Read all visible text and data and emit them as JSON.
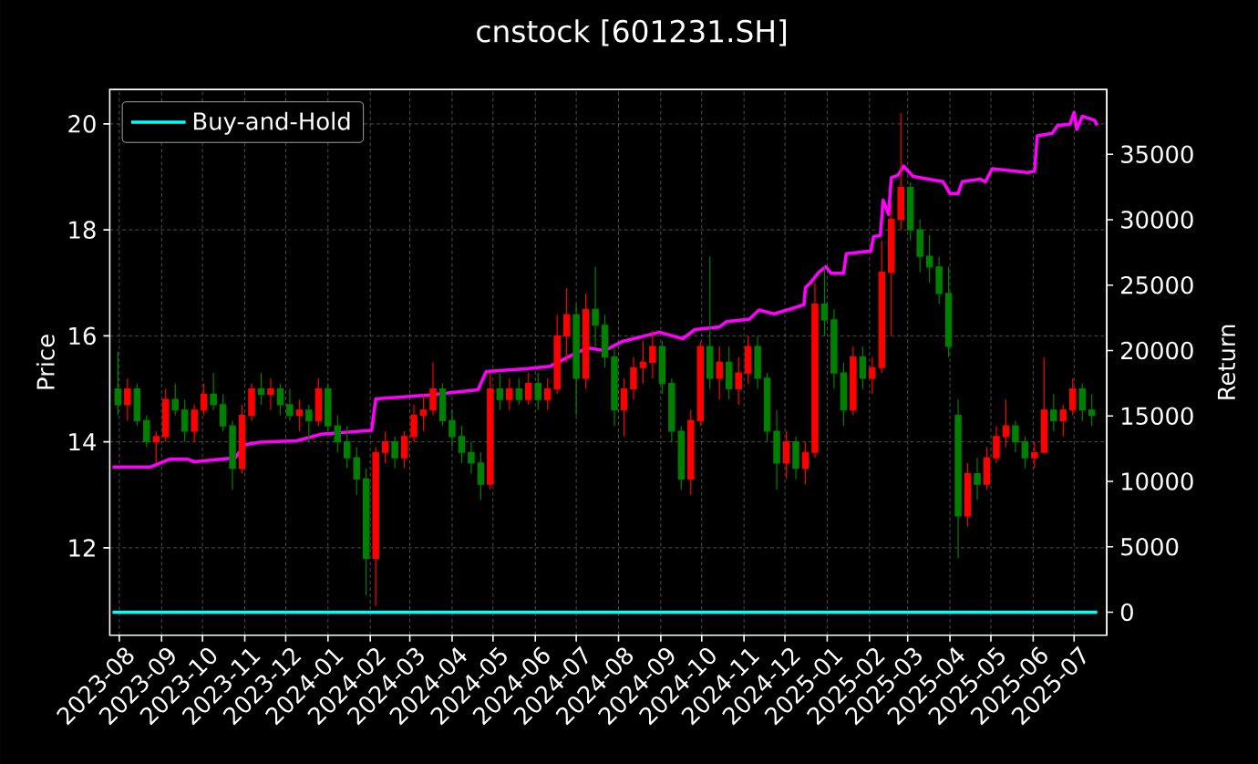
{
  "chart_data": {
    "type": "candlestick",
    "title": "cnstock [601231.SH]",
    "ylabel": "Price",
    "y2label": "Return",
    "x": [
      "2023-07-31",
      "2023-08-07",
      "2023-08-14",
      "2023-08-21",
      "2023-08-28",
      "2023-09-04",
      "2023-09-11",
      "2023-09-18",
      "2023-09-25",
      "2023-10-02",
      "2023-10-09",
      "2023-10-16",
      "2023-10-23",
      "2023-10-30",
      "2023-11-06",
      "2023-11-13",
      "2023-11-20",
      "2023-11-27",
      "2023-12-04",
      "2023-12-11",
      "2023-12-18",
      "2023-12-25",
      "2024-01-01",
      "2024-01-08",
      "2024-01-15",
      "2024-01-22",
      "2024-01-29",
      "2024-02-05",
      "2024-02-12",
      "2024-02-19",
      "2024-02-26",
      "2024-03-04",
      "2024-03-11",
      "2024-03-18",
      "2024-03-25",
      "2024-04-01",
      "2024-04-08",
      "2024-04-15",
      "2024-04-22",
      "2024-04-29",
      "2024-05-06",
      "2024-05-13",
      "2024-05-20",
      "2024-05-27",
      "2024-06-03",
      "2024-06-10",
      "2024-06-17",
      "2024-06-24",
      "2024-07-01",
      "2024-07-08",
      "2024-07-15",
      "2024-07-22",
      "2024-07-29",
      "2024-08-05",
      "2024-08-12",
      "2024-08-19",
      "2024-08-26",
      "2024-09-02",
      "2024-09-09",
      "2024-09-16",
      "2024-09-23",
      "2024-09-30",
      "2024-10-07",
      "2024-10-14",
      "2024-10-21",
      "2024-10-28",
      "2024-11-04",
      "2024-11-11",
      "2024-11-18",
      "2024-11-25",
      "2024-12-02",
      "2024-12-09",
      "2024-12-16",
      "2024-12-23",
      "2024-12-30",
      "2025-01-06",
      "2025-01-13",
      "2025-01-20",
      "2025-01-27",
      "2025-02-03",
      "2025-02-10",
      "2025-02-17",
      "2025-02-24",
      "2025-03-03",
      "2025-03-10",
      "2025-03-17",
      "2025-03-24",
      "2025-03-31",
      "2025-04-07",
      "2025-04-14",
      "2025-04-21",
      "2025-04-28",
      "2025-05-05",
      "2025-05-12",
      "2025-05-19",
      "2025-05-26",
      "2025-06-02",
      "2025-06-09",
      "2025-06-16",
      "2025-06-23",
      "2025-06-30",
      "2025-07-07",
      "2025-07-14"
    ],
    "ohlc": [
      [
        15.0,
        15.7,
        14.5,
        14.7
      ],
      [
        14.7,
        15.2,
        14.4,
        15.0
      ],
      [
        15.0,
        15.1,
        14.3,
        14.4
      ],
      [
        14.4,
        14.5,
        13.9,
        14.0
      ],
      [
        14.0,
        14.2,
        13.6,
        14.1
      ],
      [
        14.1,
        15.0,
        14.0,
        14.8
      ],
      [
        14.8,
        15.1,
        14.5,
        14.6
      ],
      [
        14.6,
        14.8,
        14.0,
        14.2
      ],
      [
        14.2,
        14.7,
        14.0,
        14.6
      ],
      [
        14.6,
        15.1,
        14.5,
        14.9
      ],
      [
        14.9,
        15.3,
        14.6,
        14.7
      ],
      [
        14.7,
        14.9,
        14.2,
        14.3
      ],
      [
        14.3,
        14.4,
        13.1,
        13.5
      ],
      [
        13.5,
        14.7,
        13.4,
        14.5
      ],
      [
        14.5,
        15.1,
        14.4,
        15.0
      ],
      [
        15.0,
        15.3,
        14.7,
        14.9
      ],
      [
        14.9,
        15.2,
        14.6,
        15.0
      ],
      [
        15.0,
        15.1,
        14.5,
        14.7
      ],
      [
        14.7,
        15.0,
        14.4,
        14.5
      ],
      [
        14.5,
        14.8,
        14.2,
        14.6
      ],
      [
        14.6,
        14.7,
        14.0,
        14.4
      ],
      [
        14.4,
        15.2,
        14.3,
        15.0
      ],
      [
        15.0,
        15.1,
        14.2,
        14.3
      ],
      [
        14.3,
        14.5,
        13.8,
        14.0
      ],
      [
        14.0,
        14.3,
        13.5,
        13.7
      ],
      [
        13.7,
        13.9,
        13.0,
        13.3
      ],
      [
        13.3,
        13.5,
        11.1,
        11.8
      ],
      [
        11.8,
        13.9,
        10.9,
        13.8
      ],
      [
        13.8,
        14.2,
        13.6,
        14.0
      ],
      [
        14.0,
        14.1,
        13.5,
        13.7
      ],
      [
        13.7,
        14.2,
        13.5,
        14.1
      ],
      [
        14.1,
        14.7,
        14.0,
        14.5
      ],
      [
        14.5,
        14.9,
        14.2,
        14.6
      ],
      [
        14.6,
        15.5,
        14.5,
        15.0
      ],
      [
        15.0,
        15.1,
        14.3,
        14.4
      ],
      [
        14.4,
        14.6,
        13.9,
        14.1
      ],
      [
        14.1,
        14.3,
        13.6,
        13.8
      ],
      [
        13.8,
        14.0,
        13.4,
        13.6
      ],
      [
        13.6,
        13.8,
        12.9,
        13.2
      ],
      [
        13.2,
        15.3,
        13.1,
        15.0
      ],
      [
        15.0,
        15.3,
        14.6,
        14.8
      ],
      [
        14.8,
        15.2,
        14.6,
        15.0
      ],
      [
        15.0,
        15.2,
        14.7,
        14.8
      ],
      [
        14.8,
        15.3,
        14.7,
        15.1
      ],
      [
        15.1,
        15.3,
        14.6,
        14.8
      ],
      [
        14.8,
        15.2,
        14.6,
        15.0
      ],
      [
        15.0,
        16.4,
        14.9,
        16.0
      ],
      [
        16.0,
        16.9,
        15.5,
        16.4
      ],
      [
        16.4,
        16.6,
        14.5,
        15.2
      ],
      [
        15.2,
        16.8,
        15.0,
        16.5
      ],
      [
        16.5,
        17.3,
        15.8,
        16.2
      ],
      [
        16.2,
        16.4,
        15.4,
        15.6
      ],
      [
        15.6,
        15.8,
        14.3,
        14.6
      ],
      [
        14.6,
        15.2,
        14.1,
        15.0
      ],
      [
        15.0,
        15.6,
        14.8,
        15.4
      ],
      [
        15.4,
        15.9,
        15.1,
        15.5
      ],
      [
        15.5,
        16.1,
        15.2,
        15.8
      ],
      [
        15.8,
        15.9,
        14.9,
        15.1
      ],
      [
        15.1,
        15.2,
        14.0,
        14.2
      ],
      [
        14.2,
        14.3,
        13.1,
        13.3
      ],
      [
        13.3,
        14.6,
        13.0,
        14.4
      ],
      [
        14.4,
        15.9,
        14.3,
        15.8
      ],
      [
        15.8,
        17.5,
        15.0,
        15.2
      ],
      [
        15.2,
        15.8,
        14.8,
        15.5
      ],
      [
        15.5,
        15.8,
        14.8,
        15.0
      ],
      [
        15.0,
        15.6,
        14.7,
        15.3
      ],
      [
        15.3,
        16.0,
        15.1,
        15.8
      ],
      [
        15.8,
        16.0,
        15.0,
        15.2
      ],
      [
        15.2,
        15.3,
        14.0,
        14.2
      ],
      [
        14.2,
        14.6,
        13.1,
        13.6
      ],
      [
        13.6,
        14.2,
        13.3,
        14.0
      ],
      [
        14.0,
        14.1,
        13.3,
        13.5
      ],
      [
        13.5,
        14.0,
        13.2,
        13.8
      ],
      [
        13.8,
        17.0,
        13.7,
        16.6
      ],
      [
        16.6,
        17.3,
        16.0,
        16.3
      ],
      [
        16.3,
        16.5,
        15.0,
        15.3
      ],
      [
        15.3,
        15.5,
        14.3,
        14.6
      ],
      [
        14.6,
        15.8,
        14.5,
        15.6
      ],
      [
        15.6,
        15.8,
        15.0,
        15.2
      ],
      [
        15.2,
        15.6,
        14.9,
        15.4
      ],
      [
        15.4,
        17.8,
        15.3,
        17.2
      ],
      [
        17.2,
        18.5,
        16.0,
        18.2
      ],
      [
        18.2,
        20.2,
        18.0,
        18.8
      ],
      [
        18.8,
        18.9,
        17.8,
        18.0
      ],
      [
        18.0,
        18.2,
        17.2,
        17.5
      ],
      [
        17.5,
        17.9,
        17.0,
        17.3
      ],
      [
        17.3,
        17.5,
        16.6,
        16.8
      ],
      [
        16.8,
        17.3,
        15.6,
        15.8
      ],
      [
        14.5,
        14.8,
        11.8,
        12.6
      ],
      [
        12.6,
        13.6,
        12.4,
        13.4
      ],
      [
        13.4,
        13.7,
        12.9,
        13.2
      ],
      [
        13.2,
        13.9,
        13.1,
        13.7
      ],
      [
        13.7,
        14.3,
        13.6,
        14.1
      ],
      [
        14.1,
        14.8,
        13.9,
        14.3
      ],
      [
        14.3,
        14.4,
        13.8,
        14.0
      ],
      [
        14.0,
        14.1,
        13.5,
        13.7
      ],
      [
        13.7,
        14.0,
        13.5,
        13.8
      ],
      [
        13.8,
        15.6,
        13.8,
        14.6
      ],
      [
        14.6,
        14.9,
        14.2,
        14.4
      ],
      [
        14.4,
        14.7,
        14.1,
        14.6
      ],
      [
        14.6,
        15.2,
        14.5,
        15.0
      ],
      [
        15.0,
        15.1,
        14.4,
        14.6
      ],
      [
        14.6,
        14.9,
        14.3,
        14.5
      ]
    ],
    "colors": [
      "#008000",
      "#ff0000",
      "#008000",
      "#008000",
      "#ff0000",
      "#ff0000",
      "#008000",
      "#008000",
      "#ff0000",
      "#ff0000",
      "#008000",
      "#008000",
      "#008000",
      "#ff0000",
      "#ff0000",
      "#008000",
      "#ff0000",
      "#008000",
      "#008000",
      "#ff0000",
      "#008000",
      "#ff0000",
      "#008000",
      "#008000",
      "#008000",
      "#008000",
      "#008000",
      "#ff0000",
      "#ff0000",
      "#008000",
      "#ff0000",
      "#ff0000",
      "#ff0000",
      "#ff0000",
      "#008000",
      "#008000",
      "#008000",
      "#008000",
      "#008000",
      "#ff0000",
      "#008000",
      "#ff0000",
      "#008000",
      "#ff0000",
      "#008000",
      "#ff0000",
      "#ff0000",
      "#ff0000",
      "#008000",
      "#ff0000",
      "#008000",
      "#008000",
      "#008000",
      "#ff0000",
      "#ff0000",
      "#ff0000",
      "#ff0000",
      "#008000",
      "#008000",
      "#008000",
      "#ff0000",
      "#ff0000",
      "#008000",
      "#ff0000",
      "#008000",
      "#ff0000",
      "#ff0000",
      "#008000",
      "#008000",
      "#008000",
      "#ff0000",
      "#008000",
      "#ff0000",
      "#ff0000",
      "#008000",
      "#008000",
      "#008000",
      "#ff0000",
      "#008000",
      "#ff0000",
      "#ff0000",
      "#ff0000",
      "#ff0000",
      "#008000",
      "#008000",
      "#008000",
      "#008000",
      "#008000",
      "#008000",
      "#ff0000",
      "#008000",
      "#ff0000",
      "#ff0000",
      "#ff0000",
      "#008000",
      "#008000",
      "#ff0000",
      "#ff0000",
      "#008000",
      "#ff0000",
      "#ff0000",
      "#008000",
      "#008000"
    ],
    "series": [
      {
        "type": "line",
        "axis": "y2",
        "color": "#ff00ff",
        "x": [
          "2023-07-27",
          "2023-08-24",
          "2023-09-07",
          "2023-09-20",
          "2023-09-25",
          "2023-10-25",
          "2023-11-01",
          "2023-11-12",
          "2023-12-09",
          "2023-12-27",
          "2024-02-02",
          "2024-02-05",
          "2024-03-15",
          "2024-04-20",
          "2024-04-26",
          "2024-05-25",
          "2024-06-12",
          "2024-06-25",
          "2024-07-09",
          "2024-07-22",
          "2024-08-04",
          "2024-08-31",
          "2024-09-17",
          "2024-09-26",
          "2024-10-14",
          "2024-10-19",
          "2024-11-05",
          "2024-11-12",
          "2024-11-23",
          "2024-12-06",
          "2024-12-15",
          "2024-12-16",
          "2024-12-19",
          "2024-12-26",
          "2024-12-31",
          "2025-01-04",
          "2025-01-13",
          "2025-01-15",
          "2025-02-02",
          "2025-02-04",
          "2025-02-09",
          "2025-02-11",
          "2025-02-15",
          "2025-02-17",
          "2025-02-22",
          "2025-02-26",
          "2025-03-05",
          "2025-03-27",
          "2025-04-01",
          "2025-04-07",
          "2025-04-10",
          "2025-04-23",
          "2025-04-27",
          "2025-05-02",
          "2025-05-28",
          "2025-06-02",
          "2025-06-04",
          "2025-06-15",
          "2025-06-19",
          "2025-06-28",
          "2025-07-01",
          "2025-07-03",
          "2025-07-07",
          "2025-07-16",
          "2025-07-18"
        ],
        "values": [
          11100,
          11100,
          11700,
          11700,
          11500,
          11800,
          12800,
          13000,
          13100,
          13600,
          13900,
          16300,
          16600,
          17000,
          18400,
          18600,
          18800,
          19500,
          20200,
          20000,
          20700,
          21400,
          20900,
          21600,
          21800,
          22200,
          22400,
          23100,
          22800,
          23200,
          23500,
          24800,
          25100,
          26000,
          26400,
          25900,
          25900,
          27400,
          27600,
          28700,
          28800,
          31500,
          30400,
          33200,
          33400,
          34100,
          33300,
          32900,
          32000,
          32000,
          32900,
          33100,
          32900,
          33900,
          33600,
          33700,
          36400,
          36600,
          37200,
          37300,
          38200,
          36900,
          37900,
          37600,
          37200
        ]
      },
      {
        "name": "Buy-and-Hold",
        "type": "line",
        "axis": "y2",
        "color": "#00ffff",
        "x": [
          "2023-07-27",
          "2025-07-18"
        ],
        "values": [
          0,
          0
        ]
      }
    ],
    "xlim": [
      "2023-07-25",
      "2025-07-25"
    ],
    "xticks": [
      "2023-08",
      "2023-09",
      "2023-10",
      "2023-11",
      "2023-12",
      "2024-01",
      "2024-02",
      "2024-03",
      "2024-04",
      "2024-05",
      "2024-06",
      "2024-07",
      "2024-08",
      "2024-09",
      "2024-10",
      "2024-11",
      "2024-12",
      "2025-01",
      "2025-02",
      "2025-03",
      "2025-04",
      "2025-05",
      "2025-06",
      "2025-07"
    ],
    "ylim": [
      10.35,
      20.65
    ],
    "yticks": [
      12,
      14,
      16,
      18,
      20
    ],
    "y2lim": [
      -1760,
      39950
    ],
    "y2ticks": [
      0,
      5000,
      10000,
      15000,
      20000,
      25000,
      30000,
      35000
    ],
    "grid": true,
    "legend": "top left"
  }
}
